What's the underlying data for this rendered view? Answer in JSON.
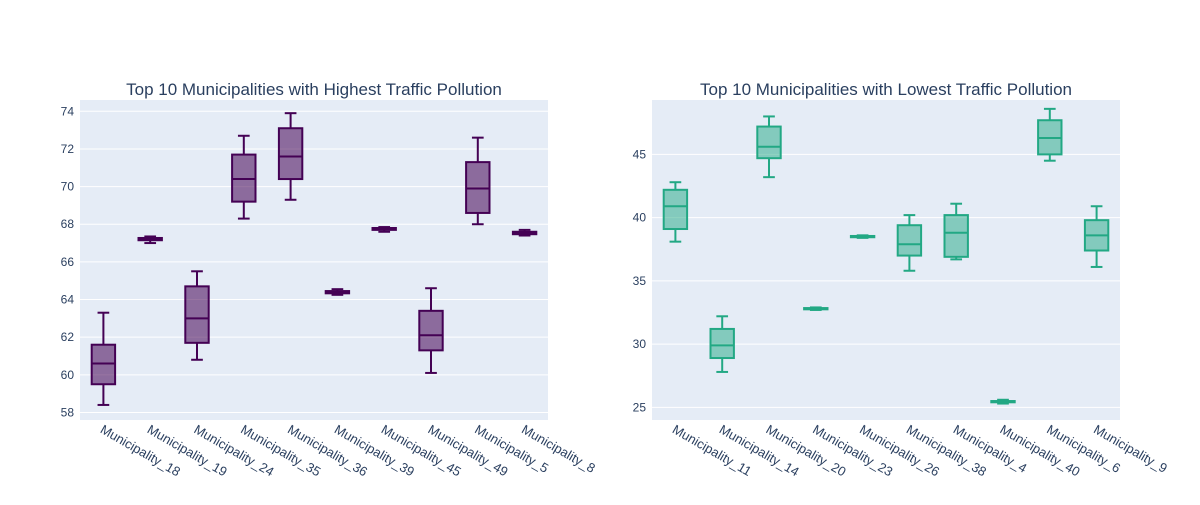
{
  "chart_data": [
    {
      "type": "box",
      "title": "Top 10 Municipalities with Highest Traffic Pollution",
      "xlabel": "",
      "ylabel": "",
      "ylim": [
        57.6,
        74.6
      ],
      "yticks": [
        58,
        60,
        62,
        64,
        66,
        68,
        70,
        72,
        74
      ],
      "grid": true,
      "legend": "none",
      "color": "#440154",
      "fill": "rgba(68,1,84,0.55)",
      "categories": [
        "Municipality_18",
        "Municipality_19",
        "Municipality_24",
        "Municipality_35",
        "Municipality_36",
        "Municipality_39",
        "Municipality_45",
        "Municipality_49",
        "Municipality_5",
        "Municipality_8"
      ],
      "boxes": [
        {
          "min": 58.4,
          "q1": 59.5,
          "median": 60.6,
          "q3": 61.6,
          "max": 63.3
        },
        {
          "min": 67.0,
          "q1": 67.15,
          "median": 67.2,
          "q3": 67.27,
          "max": 67.35
        },
        {
          "min": 60.8,
          "q1": 61.7,
          "median": 63.0,
          "q3": 64.7,
          "max": 65.5
        },
        {
          "min": 68.3,
          "q1": 69.2,
          "median": 70.4,
          "q3": 71.7,
          "max": 72.7
        },
        {
          "min": 69.3,
          "q1": 70.4,
          "median": 71.6,
          "q3": 73.1,
          "max": 73.9
        },
        {
          "min": 64.25,
          "q1": 64.33,
          "median": 64.4,
          "q3": 64.45,
          "max": 64.55
        },
        {
          "min": 67.6,
          "q1": 67.7,
          "median": 67.75,
          "q3": 67.8,
          "max": 67.85
        },
        {
          "min": 60.1,
          "q1": 61.3,
          "median": 62.1,
          "q3": 63.4,
          "max": 64.6
        },
        {
          "min": 68.0,
          "q1": 68.6,
          "median": 69.9,
          "q3": 71.3,
          "max": 72.6
        },
        {
          "min": 67.4,
          "q1": 67.47,
          "median": 67.52,
          "q3": 67.6,
          "max": 67.7
        }
      ]
    },
    {
      "type": "box",
      "title": "Top 10 Municipalities with Lowest Traffic Pollution",
      "xlabel": "",
      "ylabel": "",
      "ylim": [
        24.0,
        49.3
      ],
      "yticks": [
        25,
        30,
        35,
        40,
        45
      ],
      "grid": true,
      "legend": "none",
      "color": "#22a884",
      "fill": "rgba(34,168,132,0.5)",
      "categories": [
        "Municipality_11",
        "Municipality_14",
        "Municipality_20",
        "Municipality_23",
        "Municipality_26",
        "Municipality_38",
        "Municipality_4",
        "Municipality_40",
        "Municipality_6",
        "Municipality_9"
      ],
      "boxes": [
        {
          "min": 38.1,
          "q1": 39.1,
          "median": 40.9,
          "q3": 42.2,
          "max": 42.8
        },
        {
          "min": 27.8,
          "q1": 28.9,
          "median": 29.9,
          "q3": 31.2,
          "max": 32.2
        },
        {
          "min": 43.2,
          "q1": 44.7,
          "median": 45.6,
          "q3": 47.2,
          "max": 48.0
        },
        {
          "min": 32.7,
          "q1": 32.75,
          "median": 32.8,
          "q3": 32.85,
          "max": 32.9
        },
        {
          "min": 38.4,
          "q1": 38.45,
          "median": 38.5,
          "q3": 38.55,
          "max": 38.6
        },
        {
          "min": 35.8,
          "q1": 37.0,
          "median": 37.9,
          "q3": 39.4,
          "max": 40.2
        },
        {
          "min": 36.7,
          "q1": 36.9,
          "median": 38.8,
          "q3": 40.2,
          "max": 41.1
        },
        {
          "min": 25.3,
          "q1": 25.4,
          "median": 25.45,
          "q3": 25.5,
          "max": 25.6
        },
        {
          "min": 44.5,
          "q1": 45.0,
          "median": 46.3,
          "q3": 47.7,
          "max": 48.6
        },
        {
          "min": 36.1,
          "q1": 37.4,
          "median": 38.6,
          "q3": 39.8,
          "max": 40.9
        }
      ]
    }
  ]
}
